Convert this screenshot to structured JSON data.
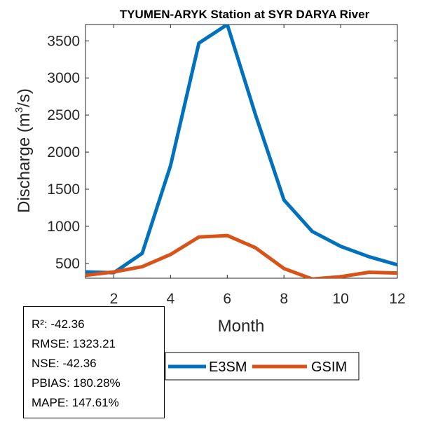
{
  "chart_data": {
    "type": "line",
    "title": "TYUMEN-ARYK  Station at  SYR DARYA  River",
    "xlabel": "Month",
    "ylabel_main": "Discharge (m",
    "ylabel_sup": "3",
    "ylabel_end": "/s)",
    "xlim": [
      1,
      12
    ],
    "ylim": [
      300,
      3720
    ],
    "xticks": [
      2,
      4,
      6,
      8,
      10,
      12
    ],
    "yticks": [
      500,
      1000,
      1500,
      2000,
      2500,
      3000,
      3500
    ],
    "grid": false,
    "legend_position": "bottom-center",
    "x": [
      1,
      2,
      3,
      4,
      5,
      6,
      7,
      8,
      9,
      10,
      11,
      12
    ],
    "series": [
      {
        "name": "E3SM",
        "color": "#0072BD",
        "values": [
          385,
          375,
          635,
          1820,
          3470,
          3720,
          2500,
          1355,
          930,
          730,
          590,
          480
        ]
      },
      {
        "name": "GSIM",
        "color": "#D95319",
        "values": [
          340,
          385,
          455,
          620,
          855,
          875,
          710,
          430,
          290,
          320,
          380,
          370
        ]
      }
    ]
  },
  "stats": {
    "r2": "R²: -42.36",
    "rmse": "RMSE: 1323.21",
    "nse": "NSE: -42.36",
    "pbias": "PBIAS: 180.28%",
    "mape": "MAPE: 147.61%"
  }
}
